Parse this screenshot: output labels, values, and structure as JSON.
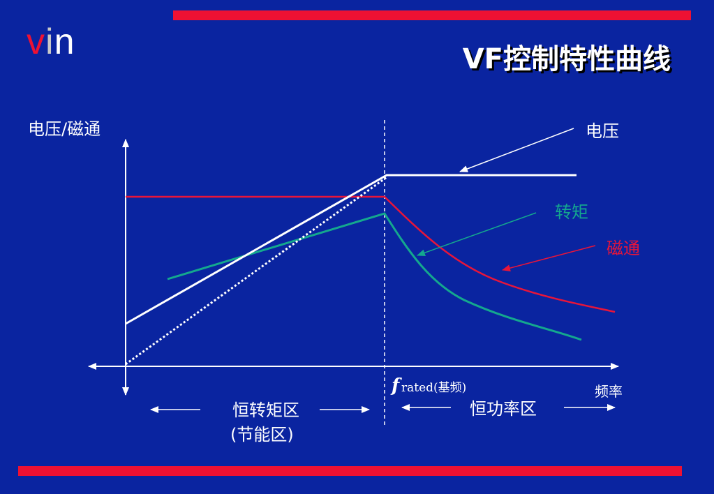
{
  "title": "VF控制特性曲线",
  "logo": {
    "v": "v",
    "i": "i",
    "n": "n"
  },
  "colors": {
    "background": "#0A24A0",
    "accent_bar": "#EE1133",
    "voltage": "#FFFFFF",
    "flux": "#E8153A",
    "torque": "#14A88E"
  },
  "diagram": {
    "y_axis_label": "电压/磁通",
    "x_axis_label": "频率",
    "f_rated_symbol": "f",
    "f_rated_text": "rated(基频)",
    "curves": {
      "voltage": "电压",
      "torque": "转矩",
      "flux": "磁通"
    },
    "region_constant_torque": "恒转矩区",
    "region_energy_saving": "(节能区)",
    "region_constant_power": "恒功率区"
  }
}
